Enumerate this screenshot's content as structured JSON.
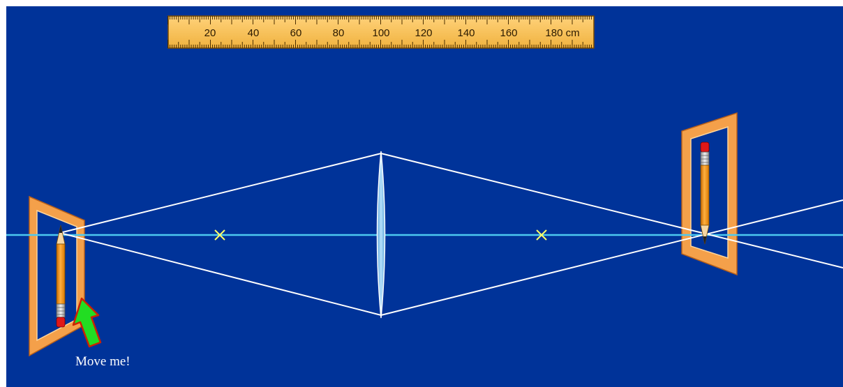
{
  "ruler": {
    "tick_labels": [
      "20",
      "40",
      "60",
      "80",
      "100",
      "120",
      "140",
      "160",
      "180 cm"
    ]
  },
  "hint": {
    "text": "Move me!"
  },
  "colors": {
    "background": "#003399",
    "optical_axis": "#4cc9f0",
    "rays": "#ffffff",
    "focal_marker": "#ffff66",
    "lens_fill": "#8ec9ef",
    "frame": "#f4a04a",
    "ruler": "#f7c15a",
    "arrow": "#22dd22"
  },
  "icons": {
    "focal_marker": "x-mark-icon",
    "object": "pencil-icon",
    "image": "pencil-icon",
    "drag_hint": "arrow-up-icon"
  }
}
